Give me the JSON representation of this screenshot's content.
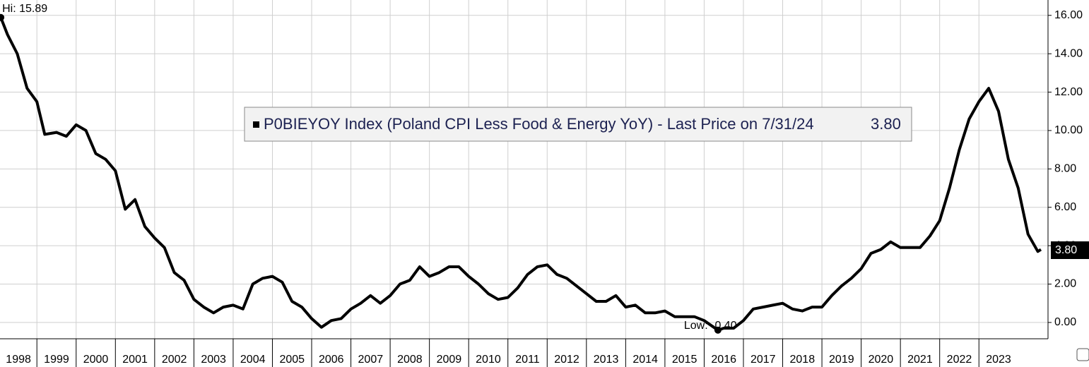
{
  "chart_data": {
    "type": "line",
    "series": [
      {
        "name": "P0BIEYOY Index (Poland CPI Less Food & Energy YoY) - Last Price on 7/31/24",
        "color": "#000000",
        "x": [
          1998.08,
          1998.25,
          1998.5,
          1998.75,
          1999.0,
          1999.2,
          1999.5,
          1999.75,
          2000.0,
          2000.25,
          2000.5,
          2000.75,
          2001.0,
          2001.25,
          2001.5,
          2001.75,
          2002.0,
          2002.25,
          2002.5,
          2002.75,
          2003.0,
          2003.25,
          2003.5,
          2003.75,
          2004.0,
          2004.25,
          2004.5,
          2004.75,
          2005.0,
          2005.25,
          2005.5,
          2005.75,
          2006.0,
          2006.25,
          2006.5,
          2006.75,
          2007.0,
          2007.25,
          2007.5,
          2007.75,
          2008.0,
          2008.25,
          2008.5,
          2008.75,
          2009.0,
          2009.25,
          2009.5,
          2009.75,
          2010.0,
          2010.25,
          2010.5,
          2010.75,
          2011.0,
          2011.25,
          2011.5,
          2011.75,
          2012.0,
          2012.25,
          2012.5,
          2012.75,
          2013.0,
          2013.25,
          2013.5,
          2013.75,
          2014.0,
          2014.25,
          2014.5,
          2014.75,
          2015.0,
          2015.25,
          2015.5,
          2015.75,
          2016.0,
          2016.35,
          2016.5,
          2016.75,
          2017.0,
          2017.25,
          2017.5,
          2017.75,
          2018.0,
          2018.25,
          2018.5,
          2018.75,
          2019.0,
          2019.25,
          2019.5,
          2019.75,
          2020.0,
          2020.25,
          2020.5,
          2020.75,
          2021.0,
          2021.25,
          2021.5,
          2021.75,
          2022.0,
          2022.25,
          2022.5,
          2022.75,
          2023.0,
          2023.25,
          2023.5,
          2023.75,
          2024.0,
          2024.25,
          2024.5,
          2024.58
        ],
        "values": [
          15.89,
          15.0,
          14.0,
          12.2,
          11.5,
          9.8,
          9.9,
          9.7,
          10.3,
          10.0,
          8.8,
          8.5,
          7.9,
          5.9,
          6.4,
          5.0,
          4.4,
          3.9,
          2.6,
          2.2,
          1.2,
          0.8,
          0.5,
          0.8,
          0.9,
          0.7,
          2.0,
          2.3,
          2.4,
          2.1,
          1.1,
          0.8,
          0.2,
          -0.25,
          0.1,
          0.2,
          0.7,
          1.0,
          1.4,
          1.0,
          1.4,
          2.0,
          2.2,
          2.9,
          2.4,
          2.6,
          2.9,
          2.9,
          2.4,
          2.0,
          1.5,
          1.2,
          1.3,
          1.8,
          2.5,
          2.9,
          3.0,
          2.5,
          2.3,
          1.9,
          1.5,
          1.1,
          1.1,
          1.4,
          0.8,
          0.9,
          0.5,
          0.5,
          0.6,
          0.3,
          0.3,
          0.3,
          0.1,
          -0.4,
          -0.3,
          -0.3,
          0.1,
          0.7,
          0.8,
          0.9,
          1.0,
          0.7,
          0.6,
          0.8,
          0.8,
          1.4,
          1.9,
          2.3,
          2.8,
          3.6,
          3.8,
          4.2,
          3.9,
          3.9,
          3.9,
          4.5,
          5.3,
          7.0,
          9.0,
          10.6,
          11.5,
          12.2,
          11.0,
          8.5,
          7.0,
          4.6,
          3.7,
          3.8
        ]
      }
    ],
    "hi": {
      "x": 1998.08,
      "value": 15.89,
      "label": "Hi: 15.89"
    },
    "low": {
      "x": 2016.35,
      "value": -0.4,
      "label": "Low: -0.40"
    },
    "last": {
      "value": 3.8,
      "label": "3.80"
    },
    "xlim": [
      1998.06,
      2024.76
    ],
    "ylim": [
      -0.85,
      16.8
    ],
    "xticks": [
      1998,
      1999,
      2000,
      2001,
      2002,
      2003,
      2004,
      2005,
      2006,
      2007,
      2008,
      2009,
      2010,
      2011,
      2012,
      2013,
      2014,
      2015,
      2016,
      2017,
      2018,
      2019,
      2020,
      2021,
      2022,
      2023
    ],
    "yticks": [
      {
        "value": 0,
        "label": "0.00"
      },
      {
        "value": 2,
        "label": "2.00"
      },
      {
        "value": 4,
        "label": "4.00"
      },
      {
        "value": 6,
        "label": "6.00"
      },
      {
        "value": 8,
        "label": "8.00"
      },
      {
        "value": 10,
        "label": "10.00"
      },
      {
        "value": 12,
        "label": "12.00"
      },
      {
        "value": 14,
        "label": "14.00"
      },
      {
        "value": 16,
        "label": "16.00"
      }
    ],
    "grid": true
  }
}
